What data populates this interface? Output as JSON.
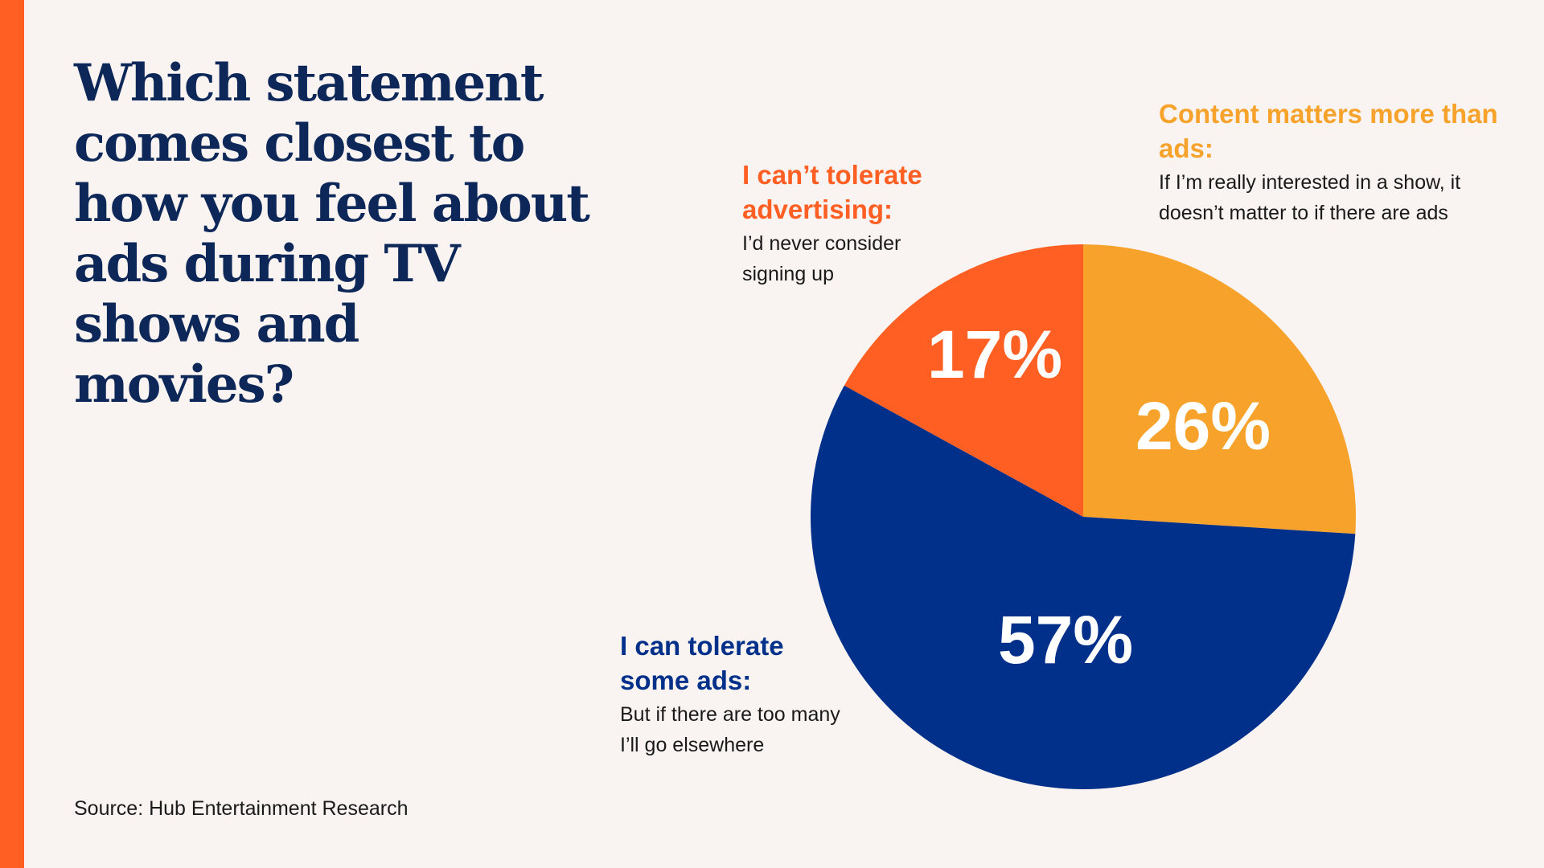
{
  "title": "Which statement comes closest to how you feel about ads during TV shows and movies?",
  "source": "Source: Hub Entertainment Research",
  "colors": {
    "accent_bar": "#ff5f22",
    "title": "#0d2758",
    "background": "#f9f4f1"
  },
  "chart_data": {
    "type": "pie",
    "start": "12 o'clock, clockwise",
    "slices": [
      {
        "label": "26%",
        "value": 26,
        "color": "#f7a22b",
        "heading": "Content matters more than ads:",
        "description": "If I’m really interested in a show, it doesn’t matter to if there are ads"
      },
      {
        "label": "57%",
        "value": 57,
        "color": "#00308a",
        "heading": "I can tolerate some ads:",
        "description": "But if there are too many I’ll go elsewhere"
      },
      {
        "label": "17%",
        "value": 17,
        "color": "#ff5f22",
        "heading": "I can’t tolerate advertising:",
        "description": "I’d never consider signing up"
      }
    ]
  }
}
